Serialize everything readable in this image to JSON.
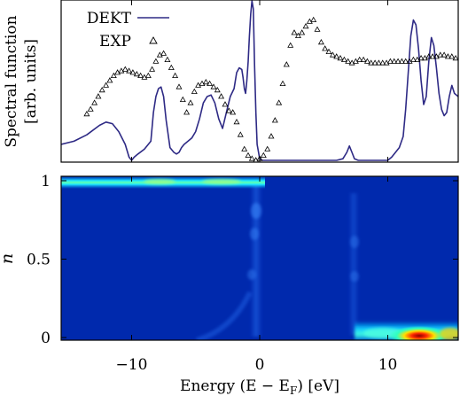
{
  "chart_data": [
    {
      "type": "line",
      "ylabel_lines": [
        "Spectral function",
        "[arb. units]"
      ],
      "xlim": [
        -15.5,
        15.5
      ],
      "ylim": [
        0,
        1.0
      ],
      "x_ticks": [
        -10,
        0,
        10
      ],
      "y_ticks_labeled": false,
      "legend_position": "top-left",
      "series": [
        {
          "name": "DEKT",
          "style": "line",
          "color": "#2e2a85",
          "x": [
            -15.5,
            -14.5,
            -13.5,
            -12.5,
            -12.0,
            -11.5,
            -11.0,
            -10.5,
            -10.2,
            -10.0,
            -9.8,
            -9.5,
            -9.0,
            -8.5,
            -8.3,
            -8.1,
            -7.9,
            -7.7,
            -7.5,
            -7.3,
            -7.0,
            -6.7,
            -6.5,
            -6.3,
            -6.1,
            -5.9,
            -5.6,
            -5.3,
            -5.0,
            -4.7,
            -4.4,
            -4.1,
            -3.8,
            -3.5,
            -3.2,
            -2.9,
            -2.6,
            -2.3,
            -2.0,
            -1.8,
            -1.6,
            -1.4,
            -1.3,
            -1.2,
            -1.1,
            -1.0,
            -0.9,
            -0.8,
            -0.7,
            -0.6,
            -0.5,
            -0.4,
            -0.3,
            -0.2,
            0.0,
            0.2,
            0.5,
            1.0,
            2.0,
            3.0,
            4.0,
            5.0,
            6.0,
            6.5,
            6.8,
            7.0,
            7.2,
            7.4,
            7.7,
            8.0,
            9.0,
            10.0,
            10.3,
            10.6,
            10.9,
            11.2,
            11.4,
            11.6,
            11.8,
            12.0,
            12.2,
            12.4,
            12.6,
            12.8,
            13.0,
            13.2,
            13.4,
            13.6,
            13.8,
            14.0,
            14.2,
            14.4,
            14.6,
            14.8,
            15.0,
            15.2,
            15.5
          ],
          "y": [
            0.1,
            0.12,
            0.16,
            0.22,
            0.24,
            0.23,
            0.18,
            0.1,
            0.02,
            0.0,
            0.02,
            0.04,
            0.07,
            0.12,
            0.3,
            0.4,
            0.45,
            0.46,
            0.4,
            0.25,
            0.08,
            0.05,
            0.04,
            0.05,
            0.08,
            0.1,
            0.12,
            0.14,
            0.18,
            0.26,
            0.36,
            0.4,
            0.41,
            0.36,
            0.26,
            0.2,
            0.3,
            0.4,
            0.45,
            0.55,
            0.58,
            0.57,
            0.52,
            0.45,
            0.42,
            0.5,
            0.62,
            0.78,
            0.92,
            1.0,
            0.95,
            0.6,
            0.3,
            0.1,
            0.01,
            0.0,
            0.0,
            0.0,
            0.0,
            0.0,
            0.0,
            0.0,
            0.0,
            0.01,
            0.05,
            0.09,
            0.05,
            0.01,
            0.0,
            0.0,
            0.0,
            0.0,
            0.02,
            0.05,
            0.08,
            0.15,
            0.32,
            0.55,
            0.78,
            0.88,
            0.85,
            0.7,
            0.5,
            0.35,
            0.4,
            0.62,
            0.77,
            0.72,
            0.58,
            0.42,
            0.32,
            0.28,
            0.3,
            0.4,
            0.47,
            0.42,
            0.4
          ]
        },
        {
          "name": "EXP",
          "style": "triangle-markers",
          "color": "#000000",
          "x": [
            -13.5,
            -13.2,
            -12.9,
            -12.6,
            -12.3,
            -12.0,
            -11.7,
            -11.4,
            -11.1,
            -10.8,
            -10.5,
            -10.2,
            -9.9,
            -9.6,
            -9.3,
            -9.0,
            -8.7,
            -8.4,
            -8.1,
            -7.8,
            -7.5,
            -7.2,
            -6.9,
            -6.6,
            -6.3,
            -6.0,
            -5.7,
            -5.4,
            -5.1,
            -4.8,
            -4.5,
            -4.2,
            -3.9,
            -3.6,
            -3.3,
            -3.0,
            -2.7,
            -2.4,
            -2.1,
            -1.8,
            -1.5,
            -1.2,
            -0.9,
            -0.6,
            -0.3,
            0.0,
            0.3,
            0.6,
            0.9,
            1.2,
            1.5,
            1.8,
            2.1,
            2.4,
            2.7,
            3.0,
            3.3,
            3.6,
            3.9,
            4.2,
            4.5,
            4.8,
            5.1,
            5.4,
            5.7,
            6.0,
            6.3,
            6.6,
            6.9,
            7.2,
            7.5,
            7.8,
            8.1,
            8.4,
            8.7,
            9.0,
            9.3,
            9.6,
            9.9,
            10.2,
            10.5,
            10.8,
            11.1,
            11.4,
            11.7,
            12.0,
            12.3,
            12.6,
            12.9,
            13.2,
            13.5,
            13.8,
            14.1,
            14.4,
            14.7,
            15.0,
            15.3
          ],
          "y": [
            0.29,
            0.32,
            0.36,
            0.4,
            0.44,
            0.47,
            0.5,
            0.53,
            0.55,
            0.56,
            0.57,
            0.56,
            0.55,
            0.54,
            0.53,
            0.52,
            0.53,
            0.57,
            0.62,
            0.66,
            0.67,
            0.63,
            0.58,
            0.53,
            0.46,
            0.38,
            0.3,
            0.36,
            0.43,
            0.47,
            0.48,
            0.49,
            0.48,
            0.46,
            0.44,
            0.4,
            0.35,
            0.31,
            0.3,
            0.24,
            0.16,
            0.07,
            0.03,
            0.01,
            0.0,
            0.01,
            0.03,
            0.07,
            0.15,
            0.25,
            0.36,
            0.48,
            0.6,
            0.72,
            0.8,
            0.78,
            0.8,
            0.84,
            0.87,
            0.88,
            0.82,
            0.74,
            0.7,
            0.68,
            0.66,
            0.65,
            0.64,
            0.63,
            0.62,
            0.61,
            0.62,
            0.63,
            0.63,
            0.62,
            0.61,
            0.61,
            0.61,
            0.61,
            0.61,
            0.62,
            0.62,
            0.62,
            0.62,
            0.62,
            0.62,
            0.63,
            0.63,
            0.64,
            0.64,
            0.65,
            0.65,
            0.65,
            0.66,
            0.66,
            0.65,
            0.65,
            0.64
          ]
        }
      ]
    },
    {
      "type": "heatmap",
      "xlabel": "Energy (E − E",
      "xlabel_sub": "F",
      "xlabel_tail": ") [eV]",
      "ylabel": "n",
      "xlim": [
        -15.5,
        15.5
      ],
      "ylim": [
        0,
        1
      ],
      "x_ticks": [
        -10,
        0,
        10
      ],
      "y_ticks": [
        0,
        0.5,
        1
      ],
      "colormap": "jet",
      "colorbar": false,
      "background_color": "#0029ad",
      "features": [
        {
          "name": "occupied band n≈1",
          "x": [
            -15.5,
            0.3
          ],
          "y": 1.0,
          "intensity": 0.45
        },
        {
          "name": "unoccupied band n≈0",
          "x": [
            7.5,
            15.5
          ],
          "y": 0.0,
          "intensity": 0.55
        },
        {
          "name": "peak",
          "x": 12.5,
          "y": 0.0,
          "intensity": 1.0
        },
        {
          "name": "vertical streak",
          "x": -0.2,
          "y": [
            0.0,
            1.0
          ],
          "intensity": 0.18
        },
        {
          "name": "vertical streak",
          "x": 7.6,
          "y": [
            0.0,
            1.0
          ],
          "intensity": 0.12
        }
      ]
    }
  ]
}
